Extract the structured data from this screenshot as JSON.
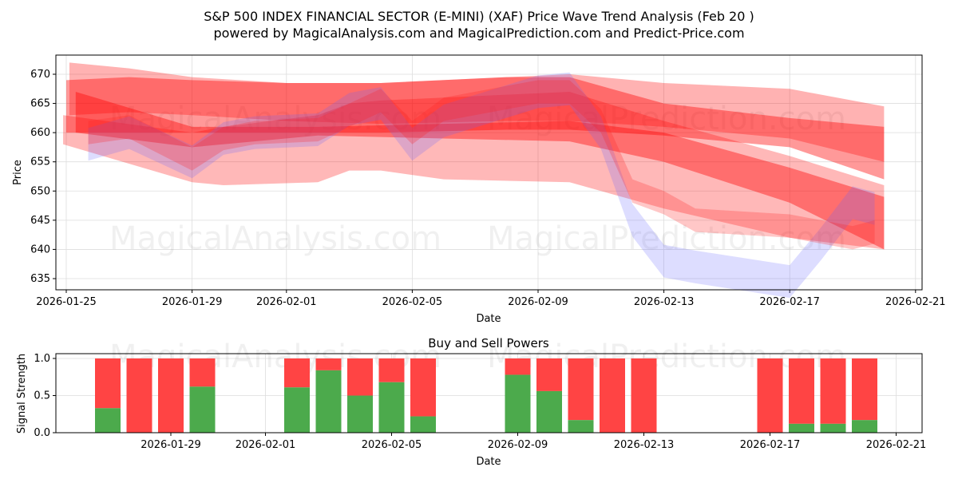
{
  "title": "S&P 500 INDEX FINANCIAL SECTOR (E-MINI) (XAF) Price Wave Trend Analysis (Feb 20 )",
  "subtitle": "powered by MagicalAnalysis.com and MagicalPrediction.com and Predict-Price.com",
  "watermarks": [
    "MagicalAnalysis.com",
    "MagicalPrediction.com"
  ],
  "chart_data": [
    {
      "type": "area",
      "title": "",
      "xlabel": "Date",
      "ylabel": "Price",
      "ylim": [
        633,
        673.5
      ],
      "xlim_days_from_2026-01-25": [
        -0.3,
        27.2
      ],
      "yticks": [
        635,
        640,
        645,
        650,
        655,
        660,
        665,
        670
      ],
      "xticks": [
        "2026-01-25",
        "2026-01-29",
        "2026-02-01",
        "2026-02-05",
        "2026-02-09",
        "2026-02-13",
        "2026-02-17",
        "2026-02-21"
      ],
      "xtick_days": [
        0,
        4,
        7,
        11,
        15,
        19,
        23,
        27
      ],
      "grid": true,
      "bands": [
        {
          "color": "#ff0000",
          "opacity": 0.3,
          "d": [
            0.1,
            2,
            4,
            7,
            10,
            14,
            16,
            19,
            23,
            26
          ],
          "hi": [
            672,
            671,
            669.5,
            668.5,
            668.5,
            669.5,
            670,
            668.5,
            667.5,
            664.5
          ],
          "lo": [
            663,
            663.5,
            663,
            662,
            661.5,
            662,
            662,
            661,
            659,
            655
          ]
        },
        {
          "color": "#ff0000",
          "opacity": 0.4,
          "d": [
            0,
            2,
            4,
            7,
            10,
            14,
            16,
            19,
            23,
            26
          ],
          "hi": [
            669,
            669.5,
            669,
            668.5,
            668.5,
            669.5,
            669.5,
            665,
            662.5,
            661
          ],
          "lo": [
            660,
            660,
            660,
            660,
            660,
            660.5,
            660.5,
            659.5,
            657.5,
            652
          ]
        },
        {
          "color": "#ff0000",
          "opacity": 0.4,
          "d": [
            0.3,
            4,
            8,
            12,
            16,
            19,
            23,
            26
          ],
          "hi": [
            667,
            661,
            661,
            661.5,
            662,
            660,
            654,
            649
          ],
          "lo": [
            660,
            657.5,
            659.5,
            659,
            658.5,
            655,
            648,
            640
          ]
        },
        {
          "color": "#ff0000",
          "opacity": 0.28,
          "d": [
            -0.1,
            4,
            5,
            8,
            9,
            10,
            12,
            16,
            19,
            23,
            26
          ],
          "hi": [
            663,
            660,
            661,
            663,
            665,
            665.5,
            666,
            667,
            662,
            656,
            651
          ],
          "lo": [
            658,
            651.5,
            651,
            651.5,
            653.5,
            653.5,
            652,
            651.5,
            647,
            642,
            640
          ]
        },
        {
          "color": "#6666ff",
          "opacity": 0.22,
          "d": [
            0.7,
            2,
            4,
            5,
            6,
            8,
            9,
            10,
            11,
            12,
            15,
            16,
            17,
            18,
            19,
            20,
            23,
            24,
            25,
            25.7
          ],
          "c": [
            658,
            660,
            655,
            659,
            660,
            660.5,
            664,
            665,
            658,
            662,
            667,
            667.5,
            660,
            645,
            638,
            637,
            634.5,
            641,
            648,
            647
          ],
          "hw": 2.8
        },
        {
          "color": "#ff2020",
          "opacity": 0.25,
          "d": [
            0.7,
            2,
            4,
            5,
            6,
            8,
            9,
            10,
            11,
            12,
            15,
            16,
            17,
            18,
            19,
            20,
            23,
            24,
            25,
            25.7
          ],
          "c": [
            660,
            661,
            655.5,
            659,
            660,
            660.5,
            663,
            665.5,
            660,
            664,
            667,
            667,
            662,
            650,
            648,
            645,
            644,
            643,
            642,
            643
          ],
          "hw": 2
        }
      ]
    },
    {
      "type": "bar",
      "title": "Buy and Sell Powers",
      "xlabel": "Date",
      "ylabel": "Signal Strength",
      "ylim": [
        0,
        1.05
      ],
      "yticks": [
        "0.0",
        "0.5",
        "1.0"
      ],
      "xticks": [
        "2026-01-29",
        "2026-02-01",
        "2026-02-05",
        "2026-02-09",
        "2026-02-13",
        "2026-02-17",
        "2026-02-21"
      ],
      "xtick_days": [
        4,
        7,
        11,
        15,
        19,
        23,
        27
      ],
      "bar_days": [
        2,
        3,
        4,
        5,
        8,
        9,
        10,
        11,
        12,
        15,
        16,
        17,
        18,
        19,
        23,
        24,
        25,
        26
      ],
      "buy": [
        0.33,
        0,
        0,
        0.62,
        0.61,
        0.84,
        0.5,
        0.68,
        0.22,
        0.78,
        0.56,
        0.17,
        0,
        0,
        0,
        0.12,
        0.12,
        0.17
      ],
      "sell_total": 1.0,
      "buy_color": "#4caa4c",
      "sell_color": "#ff4444"
    }
  ]
}
